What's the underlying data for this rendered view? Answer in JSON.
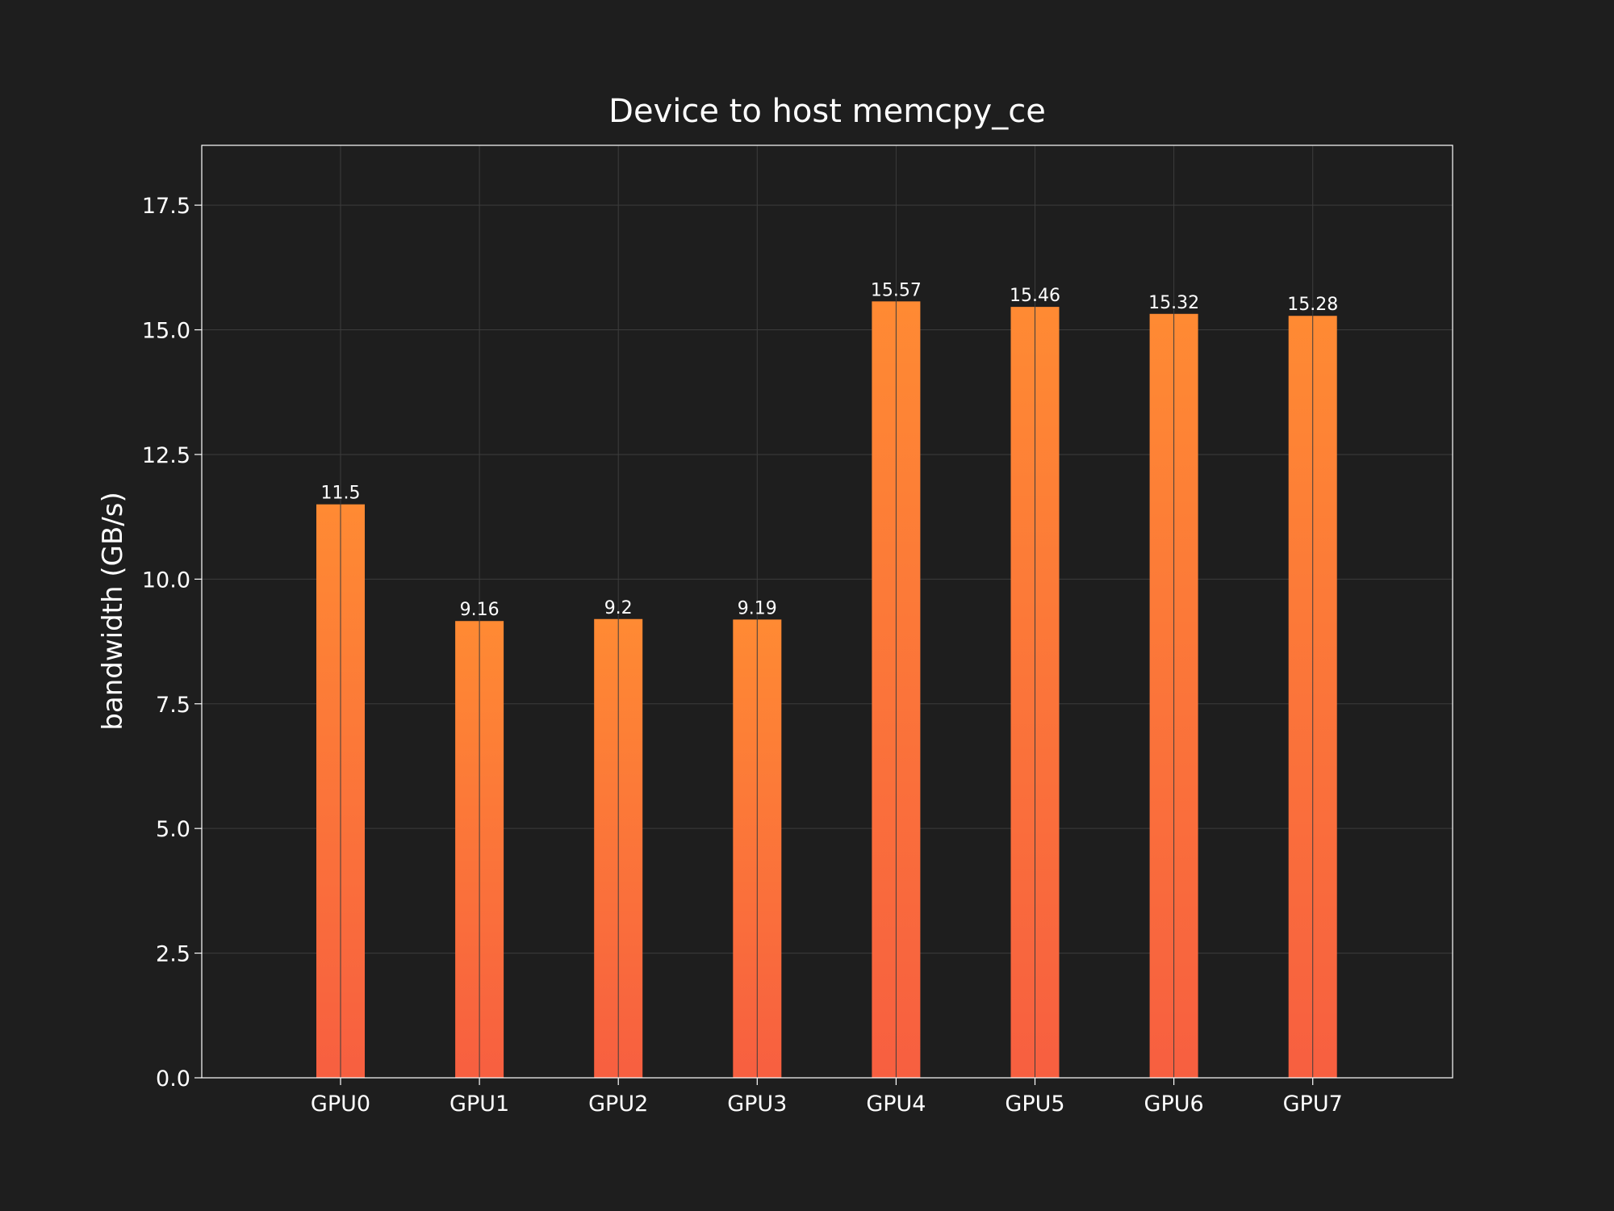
{
  "chart_data": {
    "type": "bar",
    "title": "Device to host memcpy_ce",
    "xlabel": "",
    "ylabel": "bandwidth (GB/s)",
    "categories": [
      "GPU0",
      "GPU1",
      "GPU2",
      "GPU3",
      "GPU4",
      "GPU5",
      "GPU6",
      "GPU7"
    ],
    "values": [
      11.5,
      9.16,
      9.2,
      9.19,
      15.57,
      15.46,
      15.32,
      15.28
    ],
    "data_labels": [
      "11.5",
      "9.16",
      "9.2",
      "9.19",
      "15.57",
      "15.46",
      "15.32",
      "15.28"
    ],
    "ylim": [
      0,
      18.7
    ],
    "yticks": [
      0.0,
      2.5,
      5.0,
      7.5,
      10.0,
      12.5,
      15.0,
      17.5
    ],
    "ytick_labels": [
      "0.0",
      "2.5",
      "5.0",
      "7.5",
      "10.0",
      "12.5",
      "15.0",
      "17.5"
    ],
    "grid": true,
    "legend": "none",
    "colors": {
      "background": "#1e1e1e",
      "bar_top": "#ff8a33",
      "bar_bottom": "#f75f40",
      "grid": "#3c3c3c",
      "text": "#ffffff"
    }
  }
}
